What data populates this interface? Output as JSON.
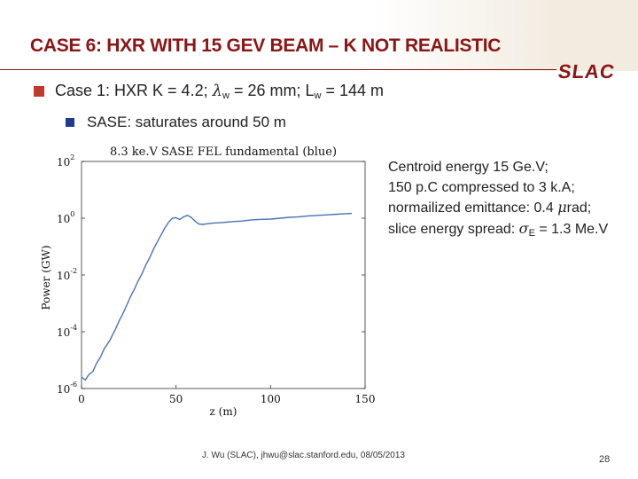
{
  "slide": {
    "title": "CASE 6: HXR WITH 15 GEV BEAM – K NOT REALISTIC",
    "logo": "SLAC",
    "footer": "J. Wu (SLAC), jhwu@slac.stanford.edu, 08/05/2013",
    "page_number": "28"
  },
  "bullets": {
    "line1": {
      "pre": "Case 1: HXR K = 4.2; ",
      "lambda": "λ",
      "w1": "w",
      "mid": " = 26 mm; L",
      "w2": "w",
      "post": " = 144 m"
    },
    "line2": "SASE: saturates around 50 m"
  },
  "notes": {
    "line1": "Centroid energy 15 Ge.V;",
    "line2": "150 p.C compressed to 3 k.A;",
    "line3_pre": "normailized emittance: 0.4 ",
    "mu": "μ",
    "line3_post": "rad;",
    "line4_pre": "slice energy spread: ",
    "sigma": "σ",
    "sub_E": "E",
    "line4_post": " = 1.3 Me.V"
  },
  "colors": {
    "accent": "#8c1515",
    "curve": "#4a72b5",
    "bullet1": "#c0392b",
    "bullet2": "#1f3a93"
  },
  "chart_data": {
    "type": "line",
    "title": "8.3 ke.V SASE FEL fundamental (blue)",
    "xlabel": "z (m)",
    "ylabel": "Power (GW)",
    "xlim": [
      0,
      150
    ],
    "ylim_log10": [
      -6,
      2
    ],
    "yscale": "log",
    "xticks": [
      "0",
      "50",
      "100",
      "150"
    ],
    "yticks": [
      {
        "base": "10",
        "exp": "2"
      },
      {
        "base": "10",
        "exp": "0"
      },
      {
        "base": "10",
        "exp": "-2"
      },
      {
        "base": "10",
        "exp": "-4"
      },
      {
        "base": "10",
        "exp": "-6"
      }
    ],
    "series": [
      {
        "color": "#4a72b5",
        "z": [
          0,
          2,
          4,
          6,
          8,
          10,
          12,
          15,
          18,
          20,
          22,
          24,
          26,
          28,
          30,
          32,
          34,
          36,
          38,
          40,
          42,
          44,
          46,
          48,
          50,
          52,
          54,
          56,
          58,
          60,
          62,
          64,
          66,
          68,
          70,
          75,
          80,
          85,
          90,
          95,
          100,
          105,
          110,
          115,
          120,
          125,
          130,
          135,
          140,
          143
        ],
        "log10_power": [
          -5.6,
          -5.7,
          -5.5,
          -5.4,
          -5.1,
          -4.9,
          -4.6,
          -4.3,
          -3.9,
          -3.6,
          -3.35,
          -3.05,
          -2.75,
          -2.5,
          -2.2,
          -1.95,
          -1.65,
          -1.4,
          -1.1,
          -0.85,
          -0.6,
          -0.35,
          -0.15,
          0.0,
          0.02,
          -0.05,
          0.05,
          0.1,
          0.03,
          -0.1,
          -0.2,
          -0.22,
          -0.2,
          -0.18,
          -0.17,
          -0.15,
          -0.12,
          -0.1,
          -0.06,
          -0.04,
          -0.03,
          0.0,
          0.03,
          0.05,
          0.08,
          0.1,
          0.12,
          0.14,
          0.16,
          0.17
        ]
      }
    ]
  }
}
